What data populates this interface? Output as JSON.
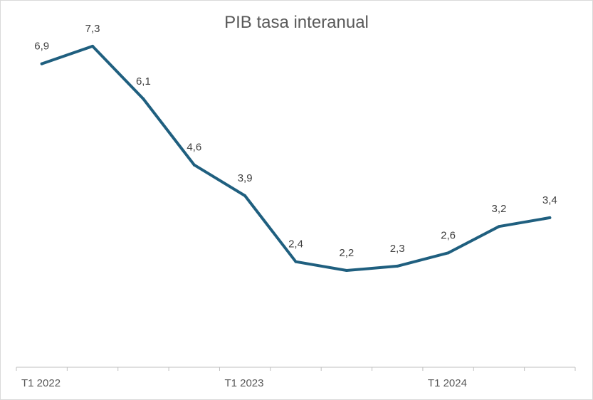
{
  "chart_data": {
    "type": "line",
    "title": "PIB tasa interanual",
    "xlabel": "",
    "ylabel": "",
    "categories": [
      "T1 2022",
      "",
      "",
      "",
      "T1 2023",
      "",
      "",
      "",
      "T1 2024",
      "",
      ""
    ],
    "series": [
      {
        "values": [
          6.9,
          7.3,
          6.1,
          4.6,
          3.9,
          2.4,
          2.2,
          2.3,
          2.6,
          3.2,
          3.4
        ],
        "labels": [
          "6,9",
          "7,3",
          "6,1",
          "4,6",
          "3,9",
          "2,4",
          "2,2",
          "2,3",
          "2,6",
          "3,2",
          "3,4"
        ],
        "color": "#1f5f7f"
      }
    ],
    "ylim": [
      0,
      8
    ],
    "grid": false,
    "legend": "none"
  }
}
